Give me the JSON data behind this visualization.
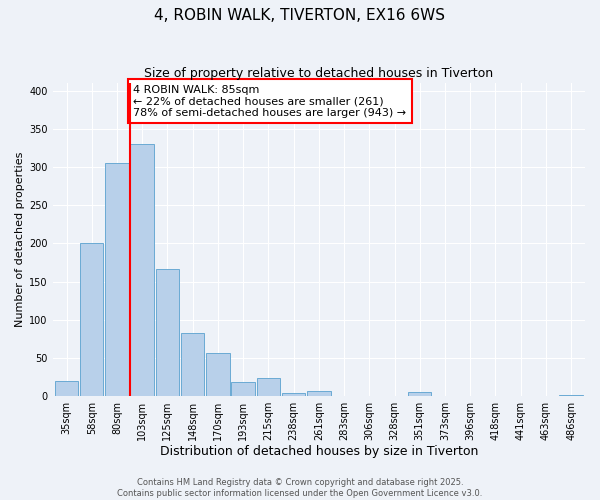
{
  "title": "4, ROBIN WALK, TIVERTON, EX16 6WS",
  "subtitle": "Size of property relative to detached houses in Tiverton",
  "xlabel": "Distribution of detached houses by size in Tiverton",
  "ylabel": "Number of detached properties",
  "bar_labels": [
    "35sqm",
    "58sqm",
    "80sqm",
    "103sqm",
    "125sqm",
    "148sqm",
    "170sqm",
    "193sqm",
    "215sqm",
    "238sqm",
    "261sqm",
    "283sqm",
    "306sqm",
    "328sqm",
    "351sqm",
    "373sqm",
    "396sqm",
    "418sqm",
    "441sqm",
    "463sqm",
    "486sqm"
  ],
  "bar_values": [
    20,
    200,
    305,
    330,
    167,
    83,
    57,
    19,
    24,
    4,
    7,
    0,
    0,
    0,
    5,
    0,
    0,
    0,
    0,
    0,
    2
  ],
  "bar_color": "#b8d0ea",
  "bar_edge_color": "#6aaad4",
  "vline_x": 2.5,
  "vline_color": "red",
  "annotation_text": "4 ROBIN WALK: 85sqm\n← 22% of detached houses are smaller (261)\n78% of semi-detached houses are larger (943) →",
  "annotation_box_color": "white",
  "annotation_box_edge": "red",
  "ylim": [
    0,
    410
  ],
  "yticks": [
    0,
    50,
    100,
    150,
    200,
    250,
    300,
    350,
    400
  ],
  "background_color": "#eef2f8",
  "footer1": "Contains HM Land Registry data © Crown copyright and database right 2025.",
  "footer2": "Contains public sector information licensed under the Open Government Licence v3.0.",
  "title_fontsize": 11,
  "subtitle_fontsize": 9,
  "xlabel_fontsize": 9,
  "ylabel_fontsize": 8,
  "tick_fontsize": 7,
  "annotation_fontsize": 8,
  "footer_fontsize": 6
}
